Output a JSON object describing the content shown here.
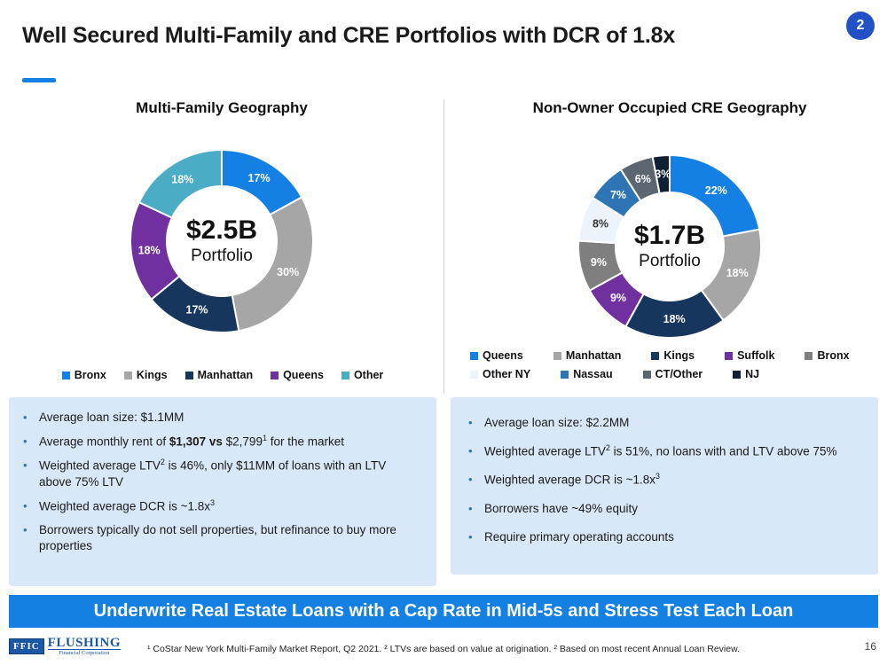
{
  "header": {
    "title": "Well Secured Multi-Family and CRE Portfolios with DCR of 1.8x",
    "badge": "2"
  },
  "chart_data": [
    {
      "type": "pie",
      "donut": true,
      "title": "Multi-Family Geography",
      "center_value": "$2.5B",
      "center_label": "Portfolio",
      "categories": [
        "Bronx",
        "Kings",
        "Manhattan",
        "Queens",
        "Other"
      ],
      "values": [
        17,
        30,
        17,
        18,
        18
      ],
      "labels": [
        "17%",
        "30%",
        "17%",
        "18%",
        "18%"
      ],
      "colors": [
        "#1580E4",
        "#A6A6A6",
        "#17365D",
        "#7030A0",
        "#4BACC6"
      ],
      "label_colors": [
        "#FFFFFF",
        "#FFFFFF",
        "#FFFFFF",
        "#FFFFFF",
        "#FFFFFF"
      ],
      "legend_rows": [
        5
      ],
      "start_angle_deg": -90,
      "legend_position": "bottom"
    },
    {
      "type": "pie",
      "donut": true,
      "title": "Non-Owner Occupied CRE Geography",
      "center_value": "$1.7B",
      "center_label": "Portfolio",
      "categories": [
        "Queens",
        "Manhattan",
        "Kings",
        "Suffolk",
        "Bronx",
        "Other NY",
        "Nassau",
        "CT/Other",
        "NJ"
      ],
      "values": [
        22,
        18,
        18,
        9,
        9,
        8,
        7,
        6,
        3
      ],
      "labels": [
        "22%",
        "18%",
        "18%",
        "9%",
        "9%",
        "8%",
        "7%",
        "6%",
        "3%"
      ],
      "colors": [
        "#1580E4",
        "#A6A6A6",
        "#17365D",
        "#7030A0",
        "#7F7F7F",
        "#EDF3FA",
        "#2E75B6",
        "#5B6670",
        "#101F33"
      ],
      "label_colors": [
        "#FFFFFF",
        "#FFFFFF",
        "#FFFFFF",
        "#FFFFFF",
        "#FFFFFF",
        "#333333",
        "#FFFFFF",
        "#FFFFFF",
        "#FFFFFF"
      ],
      "legend_rows": [
        5,
        4
      ],
      "start_angle_deg": -90,
      "legend_position": "bottom"
    }
  ],
  "left": {
    "bullets": [
      [
        {
          "t": "Average loan size: $1.1MM"
        }
      ],
      [
        {
          "t": "Average monthly rent of "
        },
        {
          "t": "$1,307 vs",
          "b": true
        },
        {
          "t": " $2,799"
        },
        {
          "t": "1",
          "sup": true
        },
        {
          "t": " for the market"
        }
      ],
      [
        {
          "t": "Weighted average LTV"
        },
        {
          "t": "2",
          "sup": true
        },
        {
          "t": " is 46%, only $11MM of loans with an LTV above 75% LTV"
        }
      ],
      [
        {
          "t": "Weighted average DCR is ~1.8x"
        },
        {
          "t": "3",
          "sup": true
        }
      ],
      [
        {
          "t": "Borrowers typically do not sell properties, but refinance to buy more properties"
        }
      ]
    ]
  },
  "right": {
    "bullets": [
      [
        {
          "t": "Average loan size: $2.2MM"
        }
      ],
      [
        {
          "t": "Weighted average LTV"
        },
        {
          "t": "2",
          "sup": true
        },
        {
          "t": " is 51%, no loans with and LTV above 75%"
        }
      ],
      [
        {
          "t": "Weighted average DCR is ~1.8x"
        },
        {
          "t": "3",
          "sup": true
        }
      ],
      [
        {
          "t": "Borrowers have ~49% equity"
        }
      ],
      [
        {
          "t": "Require primary operating accounts"
        }
      ]
    ]
  },
  "banner": {
    "text": "Underwrite Real Estate Loans with a Cap Rate in Mid-5s and Stress Test Each Loan"
  },
  "footer": {
    "logo_ffic": "FFIC",
    "logo_flushing": "FLUSHING",
    "logo_sub": "Financial Corporation",
    "footnote": "¹ CoStar New York Multi-Family Market Report, Q2 2021. ² LTVs are based on value at origination. ² Based on most recent Annual Loan Review.",
    "page_number": "16"
  }
}
